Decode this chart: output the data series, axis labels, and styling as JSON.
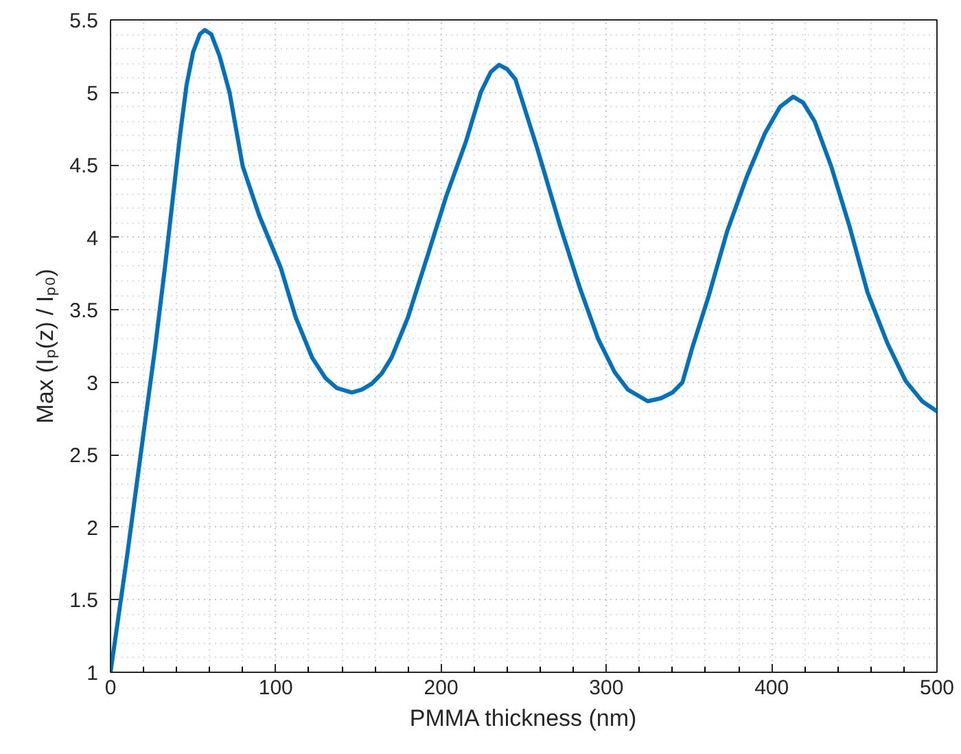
{
  "chart_data": {
    "type": "line",
    "xlabel": "PMMA thickness (nm)",
    "ylabel": "Max (Iₚ(z) / Iₚ₀)",
    "x": [
      0,
      10,
      20,
      27,
      33,
      38,
      42,
      46,
      50,
      54,
      57,
      61,
      66,
      72,
      80,
      90,
      103,
      112,
      122,
      130,
      137,
      146,
      152,
      158,
      164,
      170,
      180,
      192,
      203,
      215,
      224,
      230,
      235,
      240,
      245,
      258,
      272,
      284,
      295,
      305,
      313,
      325,
      333,
      340,
      346,
      352,
      362,
      373,
      385,
      396,
      405,
      413,
      419,
      426,
      436,
      447,
      458,
      470,
      481,
      491,
      500
    ],
    "series": [
      {
        "color": "#0072bd",
        "values": [
          1,
          1.8,
          2.65,
          3.24,
          3.8,
          4.3,
          4.7,
          5.05,
          5.28,
          5.4,
          5.43,
          5.4,
          5.25,
          5.0,
          4.49,
          4.15,
          3.79,
          3.45,
          3.17,
          3.03,
          2.96,
          2.93,
          2.95,
          2.99,
          3.06,
          3.17,
          3.45,
          3.88,
          4.28,
          4.66,
          5.0,
          5.14,
          5.19,
          5.16,
          5.09,
          4.62,
          4.08,
          3.65,
          3.3,
          3.07,
          2.95,
          2.87,
          2.89,
          2.93,
          3.0,
          3.24,
          3.6,
          4.04,
          4.42,
          4.72,
          4.9,
          4.97,
          4.93,
          4.8,
          4.49,
          4.08,
          3.62,
          3.27,
          3.01,
          2.87,
          2.8
        ]
      }
    ],
    "xlim": [
      0,
      500
    ],
    "ylim": [
      1,
      5.5
    ],
    "xticks": [
      0,
      100,
      200,
      300,
      400,
      500
    ],
    "yticks": [
      1,
      1.5,
      2,
      2.5,
      3,
      3.5,
      4,
      4.5,
      5,
      5.5
    ],
    "grid": true,
    "marker": "none",
    "line_style": "solid"
  }
}
